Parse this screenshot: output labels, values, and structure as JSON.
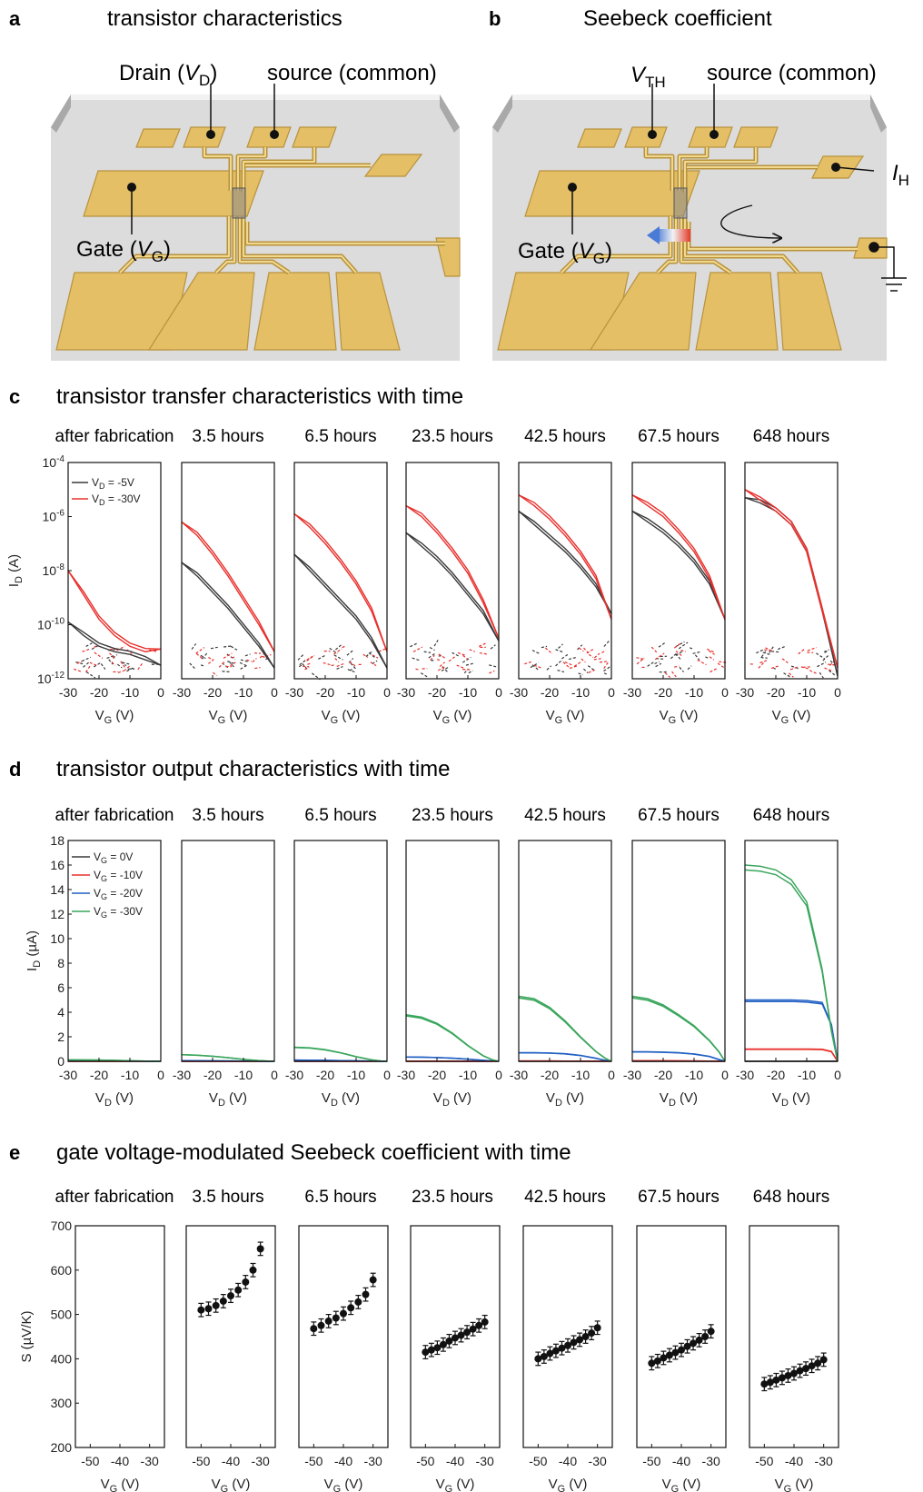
{
  "panels": {
    "a": {
      "letter": "a",
      "title": "transistor characteristics",
      "drain_label": "Drain (",
      "drain_var": "V",
      "drain_sub": "D",
      "drain_close": ")",
      "source_label": "source (common)",
      "gate_label": "Gate (",
      "gate_var": "V",
      "gate_sub": "G",
      "gate_close": ")"
    },
    "b": {
      "letter": "b",
      "title": "Seebeck coefficient",
      "vth_var": "V",
      "vth_sub": "TH",
      "source_label": "source (common)",
      "ih_var": "I",
      "ih_sub": "H",
      "gate_label": "Gate (",
      "gate_var": "V",
      "gate_sub": "G",
      "gate_close": ")"
    },
    "c": {
      "letter": "c",
      "title": "transistor transfer characteristics with time"
    },
    "d": {
      "letter": "d",
      "title": "transistor output characteristics with time"
    },
    "e": {
      "letter": "e",
      "title": "gate voltage-modulated Seebeck coefficient with time"
    }
  },
  "sample_times": [
    "after fabrication",
    "3.5 hours",
    "6.5 hours",
    "23.5 hours",
    "42.5 hours",
    "67.5 hours",
    "648 hours"
  ],
  "colors": {
    "gold": "#e4bf66",
    "gold_edge": "#b8923c",
    "substrate": "#d9d9d9",
    "black_series": "#3a3a3a",
    "red_series": "#e8302c",
    "blue_series": "#2160c4",
    "green_series": "#3aa65c"
  },
  "chart_data": [
    {
      "type": "line",
      "panel": "c",
      "xlabel": "V",
      "xlabel_sub": "G",
      "xlabel_unit": " (V)",
      "ylabel": "I",
      "ylabel_sub": "D",
      "ylabel_unit": " (A)",
      "xlim": [
        -30,
        0
      ],
      "xticks": [
        -30,
        -20,
        -10,
        0
      ],
      "ylim_log10": [
        -12,
        -4
      ],
      "yscale": "log",
      "ytick_labels": [
        "10-12",
        "10-10",
        "10-8",
        "10-6",
        "10-4"
      ],
      "yticks_base": "10",
      "yticks_exp": [
        "-12",
        "-10",
        "-8",
        "-6",
        "-4"
      ],
      "legend": [
        {
          "name_var": "V",
          "name_sub": "D",
          "name_rest": " = -5V",
          "color": "#3a3a3a"
        },
        {
          "name_var": "V",
          "name_sub": "D",
          "name_rest": " = -30V",
          "color": "#e8302c"
        }
      ],
      "legend_position": "top-left",
      "x": [
        -30,
        -25,
        -20,
        -15,
        -10,
        -5,
        0
      ],
      "subplots": [
        {
          "label": "after fabrication",
          "series": [
            {
              "name": "VD = -5V",
              "log10_values": [
                -9.9,
                -10.4,
                -10.8,
                -11.0,
                -11.1,
                -11.3,
                -11.5
              ]
            },
            {
              "name": "VD = -30V",
              "log10_values": [
                -8.0,
                -8.9,
                -9.8,
                -10.4,
                -10.8,
                -11.0,
                -10.9
              ]
            }
          ]
        },
        {
          "label": "3.5 hours",
          "series": [
            {
              "name": "VD = -5V",
              "log10_values": [
                -7.7,
                -8.2,
                -8.8,
                -9.4,
                -10.1,
                -10.8,
                -11.6
              ]
            },
            {
              "name": "VD = -30V",
              "log10_values": [
                -6.2,
                -6.7,
                -7.4,
                -8.2,
                -9.1,
                -10.0,
                -11.0
              ]
            }
          ]
        },
        {
          "label": "6.5 hours",
          "series": [
            {
              "name": "VD = -5V",
              "log10_values": [
                -7.4,
                -8.0,
                -8.6,
                -9.2,
                -9.8,
                -10.6,
                -11.6
              ]
            },
            {
              "name": "VD = -30V",
              "log10_values": [
                -5.9,
                -6.4,
                -7.0,
                -7.7,
                -8.5,
                -9.5,
                -11.0
              ]
            }
          ]
        },
        {
          "label": "23.5 hours",
          "series": [
            {
              "name": "VD = -5V",
              "log10_values": [
                -6.6,
                -7.1,
                -7.6,
                -8.2,
                -8.9,
                -9.6,
                -10.6
              ]
            },
            {
              "name": "VD = -30V",
              "log10_values": [
                -5.6,
                -6.0,
                -6.6,
                -7.3,
                -8.1,
                -9.2,
                -10.5
              ]
            }
          ]
        },
        {
          "label": "42.5 hours",
          "series": [
            {
              "name": "VD = -5V",
              "log10_values": [
                -5.8,
                -6.3,
                -6.8,
                -7.3,
                -7.9,
                -8.6,
                -9.6
              ]
            },
            {
              "name": "VD = -30V",
              "log10_values": [
                -5.2,
                -5.6,
                -6.1,
                -6.7,
                -7.4,
                -8.3,
                -9.8
              ]
            }
          ]
        },
        {
          "label": "67.5 hours",
          "series": [
            {
              "name": "VD = -5V",
              "log10_values": [
                -5.8,
                -6.2,
                -6.6,
                -7.1,
                -7.7,
                -8.5,
                -9.8
              ]
            },
            {
              "name": "VD = -30V",
              "log10_values": [
                -5.2,
                -5.6,
                -6.0,
                -6.6,
                -7.3,
                -8.3,
                -9.8
              ]
            }
          ]
        },
        {
          "label": "648 hours",
          "series": [
            {
              "name": "VD = -5V",
              "log10_values": [
                -5.3,
                -5.5,
                -5.8,
                -6.3,
                -7.3,
                -9.5,
                -11.9
              ]
            },
            {
              "name": "VD = -30V",
              "log10_values": [
                -5.0,
                -5.4,
                -5.8,
                -6.3,
                -7.3,
                -9.5,
                -11.6
              ]
            }
          ]
        }
      ]
    },
    {
      "type": "line",
      "panel": "d",
      "xlabel": "V",
      "xlabel_sub": "D",
      "xlabel_unit": " (V)",
      "ylabel": "I",
      "ylabel_sub": "D",
      "ylabel_unit": " (µA)",
      "xlim": [
        -30,
        0
      ],
      "xticks": [
        -30,
        -20,
        -10,
        0
      ],
      "ylim": [
        0,
        18
      ],
      "yticks": [
        0,
        2,
        4,
        6,
        8,
        10,
        12,
        14,
        16,
        18
      ],
      "legend": [
        {
          "name_var": "V",
          "name_sub": "G",
          "name_rest": " = 0V",
          "color": "#3a3a3a"
        },
        {
          "name_var": "V",
          "name_sub": "G",
          "name_rest": " = -10V",
          "color": "#e8302c"
        },
        {
          "name_var": "V",
          "name_sub": "G",
          "name_rest": " = -20V",
          "color": "#2160c4"
        },
        {
          "name_var": "V",
          "name_sub": "G",
          "name_rest": " = -30V",
          "color": "#3aa65c"
        }
      ],
      "legend_position": "top-left",
      "x": [
        -30,
        -25,
        -20,
        -15,
        -10,
        -5,
        -2,
        0
      ],
      "subplots": [
        {
          "label": "after fabrication",
          "series": [
            {
              "name": "VG = 0V",
              "values": [
                0,
                0,
                0,
                0,
                0,
                0,
                0,
                0
              ]
            },
            {
              "name": "VG = -10V",
              "values": [
                0,
                0,
                0,
                0,
                0,
                0,
                0,
                0
              ]
            },
            {
              "name": "VG = -20V",
              "values": [
                0.03,
                0.03,
                0.02,
                0.02,
                0.01,
                0.01,
                0,
                0
              ]
            },
            {
              "name": "VG = -30V",
              "values": [
                0.12,
                0.11,
                0.1,
                0.08,
                0.05,
                0.02,
                0.01,
                0
              ]
            }
          ]
        },
        {
          "label": "3.5 hours",
          "series": [
            {
              "name": "VG = 0V",
              "values": [
                0,
                0,
                0,
                0,
                0,
                0,
                0,
                0
              ]
            },
            {
              "name": "VG = -10V",
              "values": [
                0,
                0,
                0,
                0,
                0,
                0,
                0,
                0
              ]
            },
            {
              "name": "VG = -20V",
              "values": [
                0.05,
                0.05,
                0.04,
                0.03,
                0.02,
                0.01,
                0,
                0
              ]
            },
            {
              "name": "VG = -30V",
              "values": [
                0.55,
                0.5,
                0.42,
                0.3,
                0.16,
                0.06,
                0.02,
                0
              ]
            }
          ]
        },
        {
          "label": "6.5 hours",
          "series": [
            {
              "name": "VG = 0V",
              "values": [
                0,
                0,
                0,
                0,
                0,
                0,
                0,
                0
              ]
            },
            {
              "name": "VG = -10V",
              "values": [
                0,
                0,
                0,
                0,
                0,
                0,
                0,
                0
              ]
            },
            {
              "name": "VG = -20V",
              "values": [
                0.1,
                0.09,
                0.08,
                0.06,
                0.04,
                0.02,
                0,
                0
              ]
            },
            {
              "name": "VG = -30V",
              "values": [
                1.15,
                1.1,
                0.95,
                0.7,
                0.38,
                0.12,
                0.03,
                0
              ]
            }
          ]
        },
        {
          "label": "23.5 hours",
          "series": [
            {
              "name": "VG = 0V",
              "values": [
                0,
                0,
                0,
                0,
                0,
                0,
                0,
                0
              ]
            },
            {
              "name": "VG = -10V",
              "values": [
                0.01,
                0.01,
                0.01,
                0.01,
                0,
                0,
                0,
                0
              ]
            },
            {
              "name": "VG = -20V",
              "values": [
                0.35,
                0.34,
                0.31,
                0.26,
                0.18,
                0.08,
                0.03,
                0
              ]
            },
            {
              "name": "VG = -30V",
              "values": [
                3.8,
                3.6,
                3.1,
                2.3,
                1.3,
                0.45,
                0.12,
                0
              ]
            }
          ]
        },
        {
          "label": "42.5 hours",
          "series": [
            {
              "name": "VG = 0V",
              "values": [
                0,
                0,
                0,
                0,
                0,
                0,
                0,
                0
              ]
            },
            {
              "name": "VG = -10V",
              "values": [
                0.03,
                0.03,
                0.03,
                0.02,
                0.02,
                0.01,
                0,
                0
              ]
            },
            {
              "name": "VG = -20V",
              "values": [
                0.7,
                0.7,
                0.68,
                0.62,
                0.48,
                0.25,
                0.08,
                0
              ]
            },
            {
              "name": "VG = -30V",
              "values": [
                5.3,
                5.1,
                4.4,
                3.3,
                2.0,
                0.8,
                0.25,
                0
              ]
            }
          ]
        },
        {
          "label": "67.5 hours",
          "series": [
            {
              "name": "VG = 0V",
              "values": [
                0,
                0,
                0,
                0,
                0,
                0,
                0,
                0
              ]
            },
            {
              "name": "VG = -10V",
              "values": [
                0.05,
                0.05,
                0.05,
                0.04,
                0.03,
                0.02,
                0.01,
                0
              ]
            },
            {
              "name": "VG = -20V",
              "values": [
                0.78,
                0.78,
                0.75,
                0.7,
                0.6,
                0.4,
                0.15,
                0
              ]
            },
            {
              "name": "VG = -30V",
              "values": [
                5.3,
                5.1,
                4.6,
                3.8,
                2.9,
                1.7,
                0.8,
                0
              ]
            }
          ]
        },
        {
          "label": "648 hours",
          "series": [
            {
              "name": "VG = 0V",
              "values": [
                0,
                0,
                0,
                0,
                0,
                0,
                0,
                0
              ]
            },
            {
              "name": "VG = -10V",
              "values": [
                1.0,
                1.0,
                1.0,
                1.0,
                1.0,
                0.98,
                0.8,
                0
              ]
            },
            {
              "name": "VG = -20V",
              "values": [
                5.0,
                5.0,
                5.0,
                5.0,
                4.95,
                4.8,
                3.0,
                0
              ]
            },
            {
              "name": "VG = -30V",
              "values": [
                16.0,
                15.9,
                15.6,
                14.8,
                13.0,
                7.5,
                2.5,
                0
              ]
            }
          ]
        }
      ]
    },
    {
      "type": "scatter",
      "panel": "e",
      "xlabel": "V",
      "xlabel_sub": "G",
      "xlabel_unit": " (V)",
      "ylabel": "S (µV/K)",
      "xlim": [
        -55,
        -25
      ],
      "xticks": [
        -50,
        -40,
        -30
      ],
      "ylim": [
        200,
        700
      ],
      "yticks": [
        200,
        300,
        400,
        500,
        600,
        700
      ],
      "x": [
        -50,
        -48,
        -46,
        -44,
        -42,
        -40,
        -38,
        -36,
        -34,
        -32,
        -30
      ],
      "error_bar": 15,
      "subplots": [
        {
          "label": "after fabrication",
          "values": []
        },
        {
          "label": "3.5 hours",
          "x": [
            -50,
            -47.5,
            -45,
            -42.5,
            -40,
            -37.5,
            -35,
            -32.5,
            -30
          ],
          "values": [
            510,
            513,
            520,
            530,
            542,
            555,
            573,
            600,
            648
          ]
        },
        {
          "label": "6.5 hours",
          "x": [
            -50,
            -47.5,
            -45,
            -42.5,
            -40,
            -37.5,
            -35,
            -32.5,
            -30
          ],
          "values": [
            468,
            475,
            485,
            492,
            502,
            515,
            528,
            545,
            578
          ]
        },
        {
          "label": "23.5 hours",
          "x": [
            -50,
            -48,
            -46,
            -44,
            -42,
            -40,
            -38,
            -36,
            -34,
            -32,
            -30
          ],
          "values": [
            415,
            420,
            425,
            432,
            440,
            447,
            453,
            460,
            467,
            475,
            483
          ]
        },
        {
          "label": "42.5 hours",
          "x": [
            -50,
            -48,
            -46,
            -44,
            -42,
            -40,
            -38,
            -36,
            -34,
            -32,
            -30
          ],
          "values": [
            400,
            405,
            412,
            418,
            424,
            430,
            437,
            443,
            450,
            458,
            470
          ]
        },
        {
          "label": "67.5 hours",
          "x": [
            -50,
            -48,
            -46,
            -44,
            -42,
            -40,
            -38,
            -36,
            -34,
            -32,
            -30
          ],
          "values": [
            390,
            395,
            402,
            408,
            414,
            420,
            428,
            435,
            442,
            450,
            462
          ]
        },
        {
          "label": "648 hours",
          "x": [
            -50,
            -48,
            -46,
            -44,
            -42,
            -40,
            -38,
            -36,
            -34,
            -32,
            -30
          ],
          "values": [
            343,
            347,
            352,
            357,
            362,
            367,
            373,
            378,
            384,
            390,
            398
          ]
        }
      ]
    }
  ]
}
